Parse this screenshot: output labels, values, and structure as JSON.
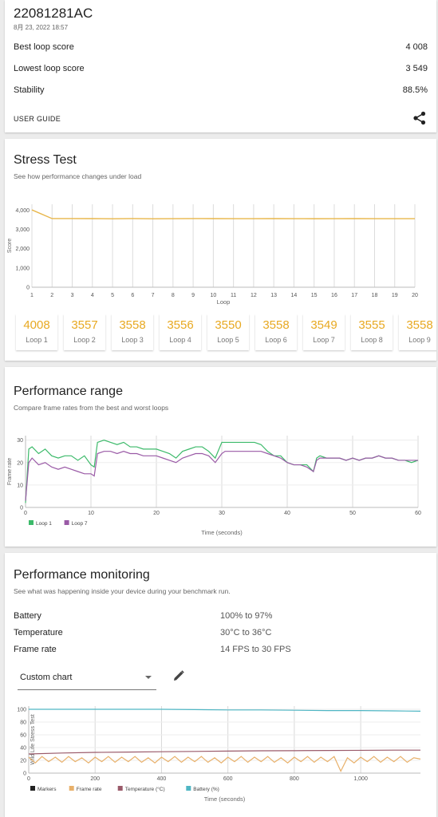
{
  "summary": {
    "device": "22081281AC",
    "date": "8月 23, 2022 18:57",
    "rows": [
      {
        "label": "Best loop score",
        "value": "4 008"
      },
      {
        "label": "Lowest loop score",
        "value": "3 549"
      },
      {
        "label": "Stability",
        "value": "88.5%"
      }
    ],
    "user_guide": "USER GUIDE",
    "share_icon": "share-icon"
  },
  "stress": {
    "title": "Stress Test",
    "subtitle": "See how performance changes under load",
    "loops": [
      {
        "score": "4008",
        "name": "Loop 1"
      },
      {
        "score": "3557",
        "name": "Loop 2"
      },
      {
        "score": "3558",
        "name": "Loop 3"
      },
      {
        "score": "3556",
        "name": "Loop 4"
      },
      {
        "score": "3550",
        "name": "Loop 5"
      },
      {
        "score": "3558",
        "name": "Loop 6"
      },
      {
        "score": "3549",
        "name": "Loop 7"
      },
      {
        "score": "3555",
        "name": "Loop 8"
      },
      {
        "score": "3558",
        "name": "Loop 9"
      }
    ]
  },
  "range": {
    "title": "Performance range",
    "subtitle": "Compare frame rates from the best and worst loops"
  },
  "monitor": {
    "title": "Performance monitoring",
    "subtitle": "See what was happening inside your device during your benchmark run.",
    "rows": [
      {
        "label": "Battery",
        "value": "100% to 97%"
      },
      {
        "label": "Temperature",
        "value": "30°C to 36°C"
      },
      {
        "label": "Frame rate",
        "value": "14 FPS to 30 FPS"
      }
    ],
    "select_value": "Custom chart",
    "edit_icon": "pencil-icon"
  },
  "chart_data": [
    {
      "type": "line",
      "xlabel": "Loop",
      "ylabel": "Score",
      "x": [
        1,
        2,
        3,
        4,
        5,
        6,
        7,
        8,
        9,
        10,
        11,
        12,
        13,
        14,
        15,
        16,
        17,
        18,
        19,
        20
      ],
      "xticks": [
        "1",
        "2",
        "3",
        "4",
        "5",
        "6",
        "7",
        "8",
        "9",
        "10",
        "11",
        "12",
        "13",
        "14",
        "15",
        "16",
        "17",
        "18",
        "19",
        "20"
      ],
      "yticks": [
        "0",
        "1,000",
        "2,000",
        "3,000",
        "4,000"
      ],
      "ylim": [
        0,
        4300
      ],
      "color": "#e8b64a",
      "series": [
        {
          "values": [
            4008,
            3557,
            3558,
            3556,
            3550,
            3558,
            3549,
            3555,
            3558,
            3556,
            3555,
            3552,
            3556,
            3554,
            3551,
            3553,
            3556,
            3552,
            3554,
            3555
          ]
        }
      ]
    },
    {
      "type": "line",
      "xlabel": "Time (seconds)",
      "ylabel": "Frame rate",
      "xlim": [
        0,
        60
      ],
      "ylim": [
        0,
        32
      ],
      "xticks": [
        "0",
        "10",
        "20",
        "30",
        "40",
        "50",
        "60"
      ],
      "yticks": [
        "0",
        "10",
        "20",
        "30"
      ],
      "series": [
        {
          "name": "Loop 1",
          "color": "#3cba6a",
          "x": [
            0,
            0.5,
            1,
            2,
            3,
            4,
            5,
            6,
            7,
            8,
            9,
            10,
            10.5,
            11,
            12,
            13,
            14,
            15,
            16,
            17,
            18,
            19,
            20,
            21,
            22,
            23,
            24,
            25,
            26,
            27,
            28,
            29,
            30,
            30.5,
            31,
            32,
            33,
            34,
            35,
            36,
            37,
            38,
            39,
            40,
            41,
            42,
            43,
            44,
            44.5,
            45,
            46,
            47,
            48,
            49,
            50,
            51,
            52,
            53,
            54,
            55,
            56,
            57,
            58,
            59,
            60
          ],
          "values": [
            2,
            26,
            27,
            24,
            26,
            23,
            22,
            23,
            23,
            21,
            23,
            19,
            18,
            29,
            30,
            29,
            28,
            29,
            27,
            27,
            26,
            26,
            26,
            25,
            24,
            22,
            25,
            26,
            27,
            27,
            25,
            22,
            29,
            29,
            29,
            29,
            29,
            29,
            29,
            28,
            25,
            23,
            23,
            20,
            19,
            19,
            19,
            16,
            22,
            23,
            22,
            22,
            22,
            21,
            22,
            21,
            22,
            22,
            23,
            22,
            22,
            21,
            21,
            20,
            21
          ]
        },
        {
          "name": "Loop 7",
          "color": "#9a5aa6",
          "x": [
            0,
            0.5,
            1,
            2,
            3,
            4,
            5,
            6,
            7,
            8,
            9,
            10,
            10.5,
            11,
            12,
            13,
            14,
            15,
            16,
            17,
            18,
            19,
            20,
            21,
            22,
            23,
            24,
            25,
            26,
            27,
            28,
            29,
            30,
            30.5,
            31,
            32,
            33,
            34,
            35,
            36,
            37,
            38,
            39,
            40,
            41,
            42,
            43,
            44,
            44.5,
            45,
            46,
            47,
            48,
            49,
            50,
            51,
            52,
            53,
            54,
            55,
            56,
            57,
            58,
            59,
            60
          ],
          "values": [
            3,
            20,
            22,
            19,
            20,
            18,
            17,
            18,
            17,
            16,
            15,
            15,
            14,
            24,
            25,
            25,
            24,
            25,
            24,
            24,
            23,
            23,
            23,
            22,
            21,
            20,
            22,
            23,
            24,
            24,
            23,
            20,
            24,
            25,
            25,
            25,
            25,
            25,
            25,
            25,
            24,
            23,
            22,
            20,
            19,
            19,
            18,
            16,
            21,
            22,
            22,
            22,
            22,
            21,
            22,
            21,
            22,
            22,
            23,
            22,
            22,
            21,
            21,
            21,
            21
          ]
        }
      ],
      "legend": "bottom-left"
    },
    {
      "type": "line",
      "xlabel": "Time (seconds)",
      "ylabel": "Wild Life Stress Test",
      "xlim": [
        0,
        1180
      ],
      "ylim": [
        0,
        105
      ],
      "xticks": [
        "0",
        "200",
        "400",
        "600",
        "800",
        "1,000"
      ],
      "yticks": [
        "0",
        "20",
        "40",
        "60",
        "80",
        "100"
      ],
      "series": [
        {
          "name": "Markers",
          "color": "#222222",
          "x": [],
          "values": []
        },
        {
          "name": "Frame rate",
          "color": "#e8b06a",
          "x": [
            0,
            20,
            40,
            60,
            80,
            100,
            120,
            140,
            160,
            180,
            200,
            220,
            240,
            260,
            280,
            300,
            320,
            340,
            360,
            380,
            400,
            420,
            440,
            460,
            480,
            500,
            520,
            540,
            560,
            580,
            600,
            620,
            640,
            660,
            680,
            700,
            720,
            740,
            760,
            780,
            800,
            820,
            840,
            860,
            880,
            900,
            920,
            940,
            960,
            980,
            1000,
            1020,
            1040,
            1060,
            1080,
            1100,
            1120,
            1140,
            1160,
            1180
          ],
          "values": [
            25,
            16,
            26,
            18,
            25,
            17,
            26,
            18,
            24,
            16,
            25,
            18,
            26,
            17,
            25,
            18,
            26,
            17,
            24,
            16,
            25,
            18,
            26,
            17,
            25,
            18,
            26,
            17,
            24,
            16,
            25,
            18,
            26,
            17,
            25,
            18,
            26,
            17,
            24,
            16,
            25,
            18,
            26,
            17,
            25,
            18,
            26,
            3,
            24,
            16,
            25,
            18,
            26,
            17,
            25,
            18,
            26,
            17,
            24,
            22
          ]
        },
        {
          "name": "Temperature (°C)",
          "color": "#9a5a6a",
          "x": [
            0,
            100,
            200,
            300,
            400,
            500,
            600,
            700,
            800,
            900,
            1000,
            1100,
            1180
          ],
          "values": [
            30,
            31.5,
            32.5,
            33,
            33.5,
            34,
            34.5,
            35,
            35.2,
            35.5,
            35.7,
            36,
            36
          ]
        },
        {
          "name": "Battery (%)",
          "color": "#4fb6c4",
          "x": [
            0,
            100,
            200,
            300,
            400,
            500,
            600,
            700,
            800,
            900,
            1000,
            1100,
            1180
          ],
          "values": [
            100,
            100,
            100,
            100,
            100,
            99.5,
            99,
            99,
            98.5,
            98,
            98,
            97.5,
            97
          ]
        }
      ],
      "legend": "bottom-left"
    }
  ]
}
